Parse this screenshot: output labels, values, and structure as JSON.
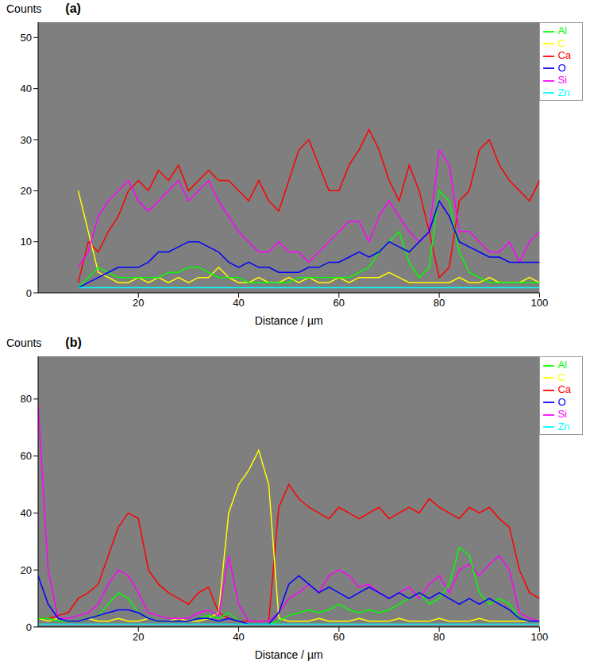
{
  "chart_data": [
    {
      "type": "line",
      "title": "(a)",
      "y_label": "Counts",
      "x_label": "Distance / µm",
      "xlim": [
        0,
        100
      ],
      "xticks": [
        20,
        40,
        60,
        80,
        100
      ],
      "ylim": [
        0,
        53
      ],
      "yticks": [
        0,
        10,
        20,
        30,
        40,
        50
      ],
      "legend": "right",
      "x": [
        0,
        2,
        4,
        6,
        8,
        10,
        12,
        14,
        16,
        18,
        20,
        22,
        24,
        26,
        28,
        30,
        32,
        34,
        36,
        38,
        40,
        42,
        44,
        46,
        48,
        50,
        52,
        54,
        56,
        58,
        60,
        62,
        64,
        66,
        68,
        70,
        72,
        74,
        76,
        78,
        80,
        82,
        84,
        86,
        88,
        90,
        92,
        94,
        96,
        98,
        100
      ],
      "series": [
        {
          "name": "Ca",
          "color": "#ff0000",
          "values": [
            null,
            null,
            null,
            null,
            2,
            10,
            8,
            12,
            15,
            20,
            22,
            20,
            24,
            22,
            25,
            20,
            22,
            24,
            22,
            22,
            20,
            18,
            22,
            18,
            16,
            22,
            28,
            30,
            25,
            20,
            20,
            25,
            28,
            32,
            28,
            22,
            18,
            25,
            20,
            12,
            3,
            5,
            18,
            20,
            28,
            30,
            25,
            22,
            20,
            18,
            22
          ]
        },
        {
          "name": "C",
          "color": "#ffff00",
          "values": [
            null,
            null,
            null,
            null,
            20,
            12,
            4,
            3,
            2,
            2,
            3,
            2,
            3,
            2,
            3,
            2,
            3,
            3,
            5,
            3,
            2,
            2,
            3,
            2,
            2,
            3,
            2,
            3,
            2,
            2,
            3,
            2,
            3,
            3,
            3,
            4,
            3,
            2,
            2,
            2,
            2,
            2,
            3,
            2,
            2,
            3,
            2,
            2,
            2,
            3,
            2
          ]
        },
        {
          "name": "Si",
          "color": "#ff00ff",
          "values": [
            null,
            null,
            null,
            null,
            5,
            8,
            15,
            18,
            20,
            22,
            18,
            16,
            18,
            20,
            22,
            18,
            20,
            22,
            18,
            15,
            12,
            10,
            8,
            8,
            10,
            8,
            8,
            6,
            8,
            10,
            12,
            14,
            14,
            10,
            15,
            18,
            15,
            12,
            10,
            12,
            28,
            25,
            12,
            12,
            10,
            8,
            8,
            10,
            6,
            10,
            12
          ]
        },
        {
          "name": "Al",
          "color": "#00ff00",
          "values": [
            null,
            null,
            null,
            null,
            1,
            3,
            5,
            4,
            3,
            3,
            3,
            3,
            3,
            4,
            4,
            5,
            5,
            4,
            3,
            3,
            3,
            2,
            2,
            2,
            2,
            2,
            3,
            3,
            3,
            3,
            3,
            3,
            4,
            5,
            8,
            10,
            12,
            6,
            3,
            5,
            20,
            18,
            8,
            4,
            3,
            2,
            2,
            2,
            2,
            2,
            2
          ]
        },
        {
          "name": "O",
          "color": "#0000ff",
          "values": [
            null,
            null,
            null,
            null,
            1,
            2,
            3,
            4,
            5,
            5,
            5,
            6,
            8,
            8,
            9,
            10,
            10,
            9,
            8,
            6,
            5,
            6,
            5,
            5,
            4,
            4,
            4,
            5,
            5,
            6,
            6,
            7,
            8,
            7,
            8,
            10,
            9,
            8,
            10,
            12,
            18,
            15,
            10,
            9,
            8,
            7,
            7,
            6,
            6,
            6,
            6
          ]
        },
        {
          "name": "Zn",
          "color": "#00ffff",
          "values": [
            null,
            null,
            null,
            null,
            1,
            1,
            1,
            1,
            1,
            1,
            1,
            1,
            1,
            1,
            1,
            1,
            1,
            1,
            1,
            1,
            1,
            1,
            1,
            1,
            1,
            1,
            1,
            1,
            1,
            1,
            1,
            1,
            1,
            1,
            1,
            1,
            1,
            1,
            1,
            1,
            1,
            1,
            1,
            1,
            1,
            1,
            1,
            1,
            1,
            1,
            1
          ]
        }
      ]
    },
    {
      "type": "line",
      "title": "(b)",
      "y_label": "Counts",
      "x_label": "Distance / µm",
      "xlim": [
        0,
        100
      ],
      "xticks": [
        20,
        40,
        60,
        80,
        100
      ],
      "ylim": [
        0,
        95
      ],
      "yticks": [
        0,
        20,
        40,
        60,
        80
      ],
      "legend": "right",
      "x": [
        0,
        2,
        4,
        6,
        8,
        10,
        12,
        14,
        16,
        18,
        20,
        22,
        24,
        26,
        28,
        30,
        32,
        34,
        36,
        38,
        40,
        42,
        44,
        46,
        48,
        50,
        52,
        54,
        56,
        58,
        60,
        62,
        64,
        66,
        68,
        70,
        72,
        74,
        76,
        78,
        80,
        82,
        84,
        86,
        88,
        90,
        92,
        94,
        96,
        98,
        100
      ],
      "series": [
        {
          "name": "Ca",
          "color": "#ff0000",
          "values": [
            3,
            3,
            4,
            5,
            10,
            12,
            15,
            25,
            35,
            40,
            38,
            20,
            15,
            12,
            10,
            8,
            12,
            14,
            5,
            3,
            2,
            2,
            2,
            2,
            42,
            50,
            45,
            42,
            40,
            38,
            42,
            40,
            38,
            40,
            42,
            38,
            40,
            42,
            40,
            45,
            42,
            40,
            38,
            42,
            40,
            42,
            38,
            35,
            20,
            12,
            10
          ]
        },
        {
          "name": "C",
          "color": "#ffff00",
          "values": [
            3,
            2,
            3,
            2,
            2,
            3,
            2,
            2,
            3,
            2,
            2,
            3,
            2,
            2,
            3,
            2,
            2,
            3,
            5,
            40,
            50,
            55,
            62,
            50,
            3,
            2,
            2,
            2,
            3,
            2,
            2,
            2,
            3,
            2,
            2,
            2,
            3,
            2,
            2,
            2,
            3,
            2,
            2,
            2,
            3,
            2,
            2,
            2,
            2,
            2,
            2
          ]
        },
        {
          "name": "Si",
          "color": "#ff00ff",
          "values": [
            78,
            20,
            3,
            3,
            4,
            5,
            8,
            15,
            20,
            18,
            12,
            5,
            4,
            3,
            3,
            3,
            5,
            6,
            4,
            25,
            8,
            2,
            2,
            2,
            5,
            10,
            12,
            15,
            12,
            18,
            20,
            18,
            14,
            15,
            12,
            10,
            12,
            14,
            10,
            15,
            18,
            12,
            20,
            22,
            18,
            22,
            25,
            20,
            5,
            3,
            2
          ]
        },
        {
          "name": "Al",
          "color": "#00ff00",
          "values": [
            3,
            3,
            2,
            2,
            2,
            3,
            4,
            8,
            12,
            10,
            5,
            3,
            2,
            2,
            2,
            2,
            3,
            4,
            3,
            5,
            2,
            1,
            1,
            1,
            2,
            4,
            5,
            6,
            5,
            6,
            8,
            6,
            5,
            6,
            5,
            6,
            8,
            10,
            12,
            8,
            10,
            15,
            28,
            25,
            12,
            8,
            10,
            8,
            3,
            2,
            2
          ]
        },
        {
          "name": "O",
          "color": "#0000ff",
          "values": [
            18,
            8,
            3,
            2,
            2,
            3,
            4,
            5,
            6,
            6,
            5,
            3,
            2,
            2,
            2,
            2,
            3,
            3,
            2,
            3,
            2,
            1,
            1,
            1,
            5,
            15,
            18,
            15,
            12,
            14,
            12,
            10,
            12,
            14,
            12,
            10,
            12,
            10,
            12,
            10,
            12,
            10,
            8,
            10,
            8,
            10,
            8,
            6,
            3,
            2,
            2
          ]
        },
        {
          "name": "Zn",
          "color": "#00ffff",
          "values": [
            1,
            1,
            1,
            1,
            1,
            1,
            1,
            1,
            1,
            1,
            1,
            1,
            1,
            1,
            1,
            1,
            1,
            1,
            1,
            1,
            1,
            1,
            1,
            1,
            1,
            1,
            1,
            1,
            1,
            1,
            1,
            1,
            1,
            1,
            1,
            1,
            1,
            1,
            1,
            1,
            1,
            1,
            1,
            1,
            1,
            1,
            1,
            1,
            1,
            1,
            1
          ]
        }
      ]
    }
  ]
}
